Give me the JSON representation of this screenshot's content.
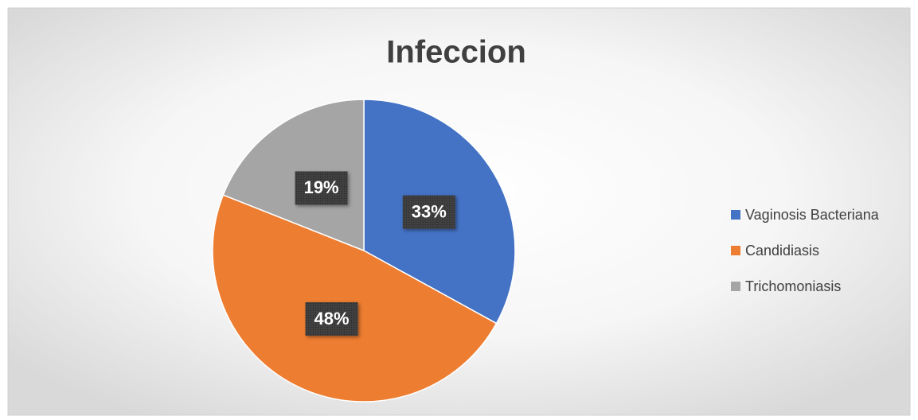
{
  "chart_data": {
    "type": "pie",
    "title": "Infeccion",
    "categories": [
      "Vaginosis Bacteriana",
      "Candidiasis",
      "Trichomoniasis"
    ],
    "values": [
      33,
      48,
      19
    ],
    "value_labels": [
      "33%",
      "48%",
      "19%"
    ],
    "colors": [
      "#4472c4",
      "#ed7d31",
      "#a5a5a5"
    ],
    "legend": "right"
  }
}
